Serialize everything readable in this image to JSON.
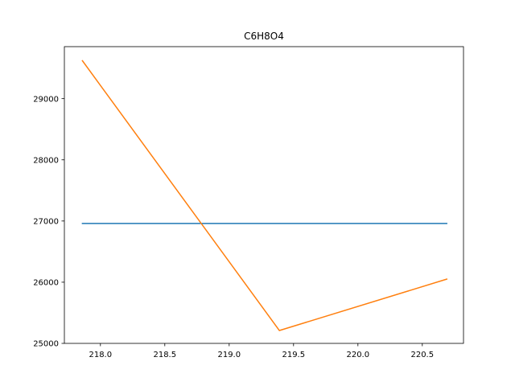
{
  "chart_data": {
    "type": "line",
    "title": "C6H8O4",
    "xlabel": "",
    "ylabel": "",
    "xlim": [
      217.72,
      220.82
    ],
    "ylim": [
      25000,
      29850
    ],
    "grid": false,
    "x_ticks": [
      218.0,
      218.5,
      219.0,
      219.5,
      220.0,
      220.5
    ],
    "x_tick_labels": [
      "218.0",
      "218.5",
      "219.0",
      "219.5",
      "220.0",
      "220.5"
    ],
    "y_ticks": [
      25000,
      26000,
      27000,
      28000,
      29000
    ],
    "y_tick_labels": [
      "25000",
      "26000",
      "27000",
      "28000",
      "29000"
    ],
    "series": [
      {
        "color": "#1f77b4",
        "x": [
          217.86,
          220.69
        ],
        "y": [
          26960,
          26960
        ]
      },
      {
        "color": "#ff7f0e",
        "x": [
          217.86,
          219.39,
          220.69
        ],
        "y": [
          29620,
          25210,
          26050
        ]
      }
    ]
  }
}
